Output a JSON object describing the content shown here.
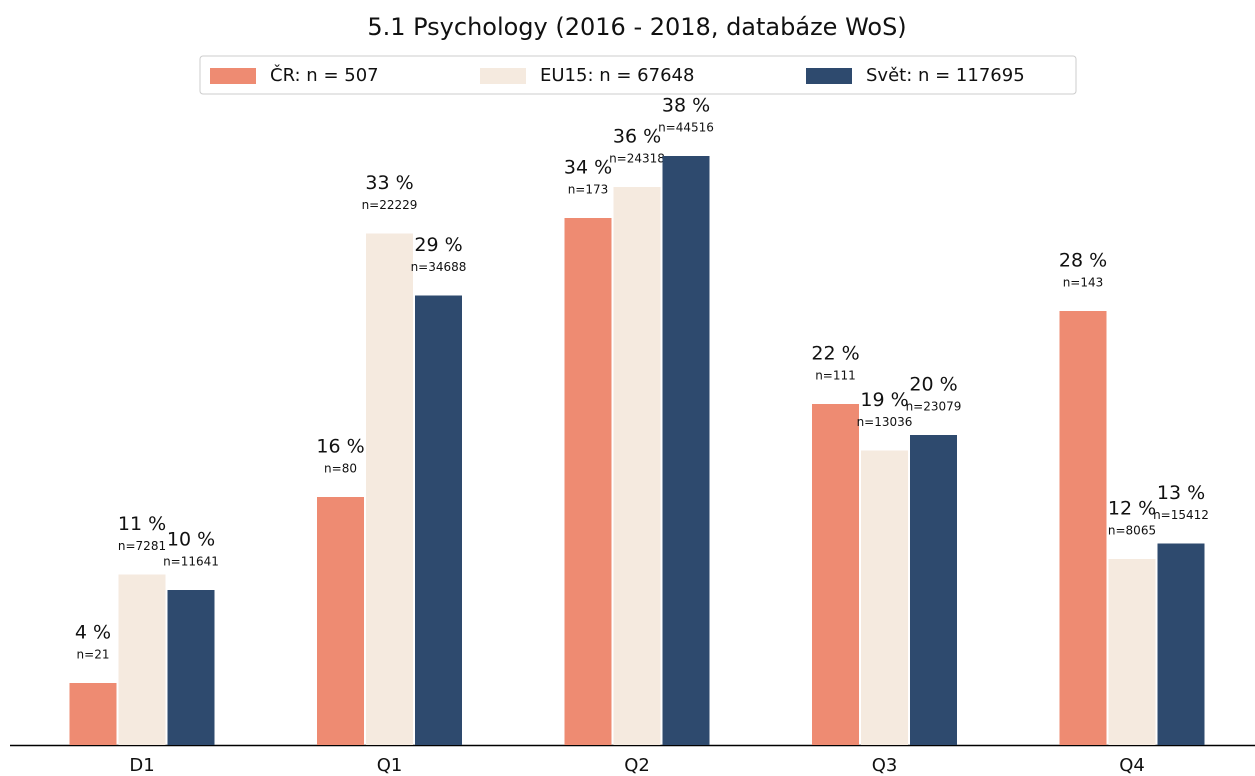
{
  "chart_data": {
    "type": "bar",
    "title": "5.1 Psychology (2016 - 2018, databáze WoS)",
    "categories": [
      "D1",
      "Q1",
      "Q2",
      "Q3",
      "Q4"
    ],
    "series": [
      {
        "name": "ČR: n = 507",
        "color": "#ee8b72",
        "values": [
          4,
          16,
          34,
          22,
          28
        ],
        "value_labels": [
          "4 %",
          "16 %",
          "34 %",
          "22 %",
          "28 %"
        ],
        "counts": [
          21,
          80,
          173,
          111,
          143
        ],
        "count_labels": [
          "n=21",
          "n=80",
          "n=173",
          "n=111",
          "n=143"
        ]
      },
      {
        "name": "EU15: n = 67648",
        "color": "#f5eadf",
        "values": [
          11,
          33,
          36,
          19,
          12
        ],
        "value_labels": [
          "11 %",
          "33 %",
          "36 %",
          "19 %",
          "12 %"
        ],
        "counts": [
          7281,
          22229,
          24318,
          13036,
          8065
        ],
        "count_labels": [
          "n=7281",
          "n=22229",
          "n=24318",
          "n=13036",
          "n=8065"
        ]
      },
      {
        "name": "Svět: n = 117695",
        "color": "#2e4a6e",
        "values": [
          10,
          29,
          38,
          20,
          13
        ],
        "value_labels": [
          "10 %",
          "29 %",
          "38 %",
          "20 %",
          "13 %"
        ],
        "counts": [
          11641,
          34688,
          44516,
          23079,
          15412
        ],
        "count_labels": [
          "n=11641",
          "n=34688",
          "n=44516",
          "n=23079",
          "n=15412"
        ]
      }
    ],
    "legend": "top"
  }
}
